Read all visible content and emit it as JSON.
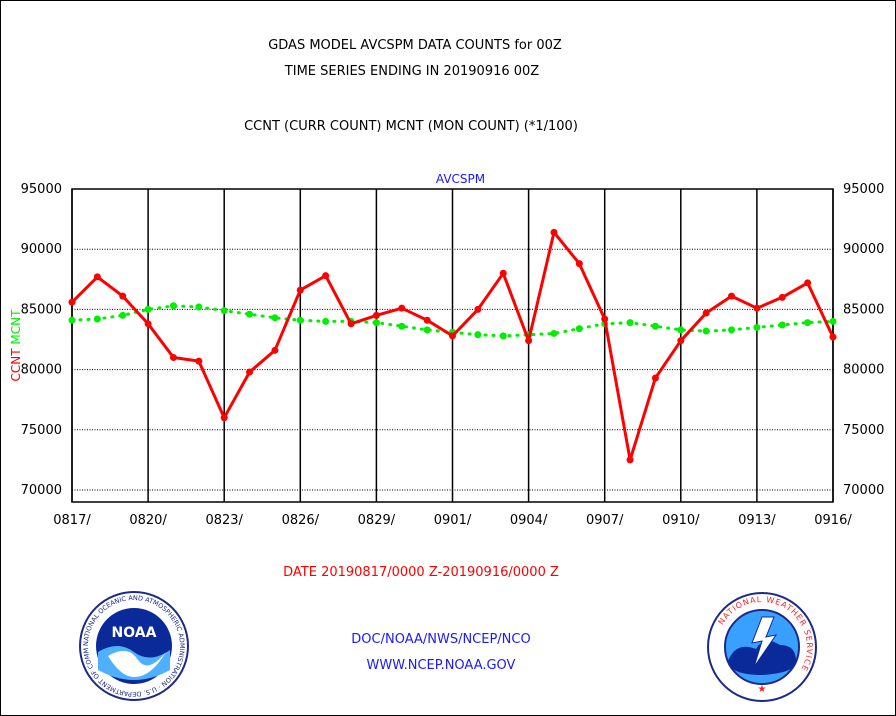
{
  "header": {
    "title_line1": "GDAS MODEL AVCSPM DATA COUNTS for 00Z",
    "title_line2": "TIME SERIES ENDING IN 20190916 00Z",
    "subtitle": "CCNT (CURR COUNT) MCNT (MON COUNT) (*1/100)"
  },
  "chart_data": {
    "type": "line",
    "title": "AVCSPM",
    "ylabel_series1": "CCNT",
    "ylabel_series2": "MCNT",
    "ylim": [
      69000,
      95000
    ],
    "yticks": [
      70000,
      75000,
      80000,
      85000,
      90000,
      95000
    ],
    "ytick_labels": [
      "70000",
      "75000",
      "80000",
      "85000",
      "90000",
      "95000"
    ],
    "xtick_labels": [
      "0817/",
      "0820/",
      "0823/",
      "0826/",
      "0829/",
      "0901/",
      "0904/",
      "0907/",
      "0910/",
      "0913/",
      "0916/"
    ],
    "xlabel": "DATE 20190817/0000 Z-20190916/0000 Z",
    "grid": true,
    "series": [
      {
        "name": "CCNT",
        "color": "#ff0000",
        "style": "solid",
        "values": [
          85600,
          87700,
          86100,
          83800,
          81000,
          80700,
          76000,
          79800,
          81600,
          86600,
          87800,
          83800,
          84500,
          85100,
          84100,
          82800,
          85000,
          88000,
          82400,
          91400,
          88800,
          84200,
          72500,
          79300,
          82400,
          84700,
          86100,
          85100,
          86000,
          87200,
          82700
        ]
      },
      {
        "name": "MCNT",
        "color": "#00ee00",
        "style": "dotted",
        "values": [
          84100,
          84200,
          84500,
          85000,
          85300,
          85200,
          84900,
          84600,
          84300,
          84100,
          84000,
          84000,
          83900,
          83600,
          83300,
          83100,
          82900,
          82800,
          82900,
          83000,
          83400,
          83800,
          83900,
          83600,
          83300,
          83200,
          83300,
          83500,
          83700,
          83900,
          84000
        ]
      }
    ]
  },
  "footer": {
    "agency_line1": "DOC/NOAA/NWS/NCEP/NCO",
    "agency_line2": "WWW.NCEP.NOAA.GOV",
    "logo_left": "NOAA",
    "logo_left_ring": "NATIONAL OCEANIC AND ATMOSPHERIC ADMINISTRATION · U.S. DEPARTMENT OF COMMERCE",
    "logo_right_ring": "NATIONAL WEATHER SERVICE"
  }
}
